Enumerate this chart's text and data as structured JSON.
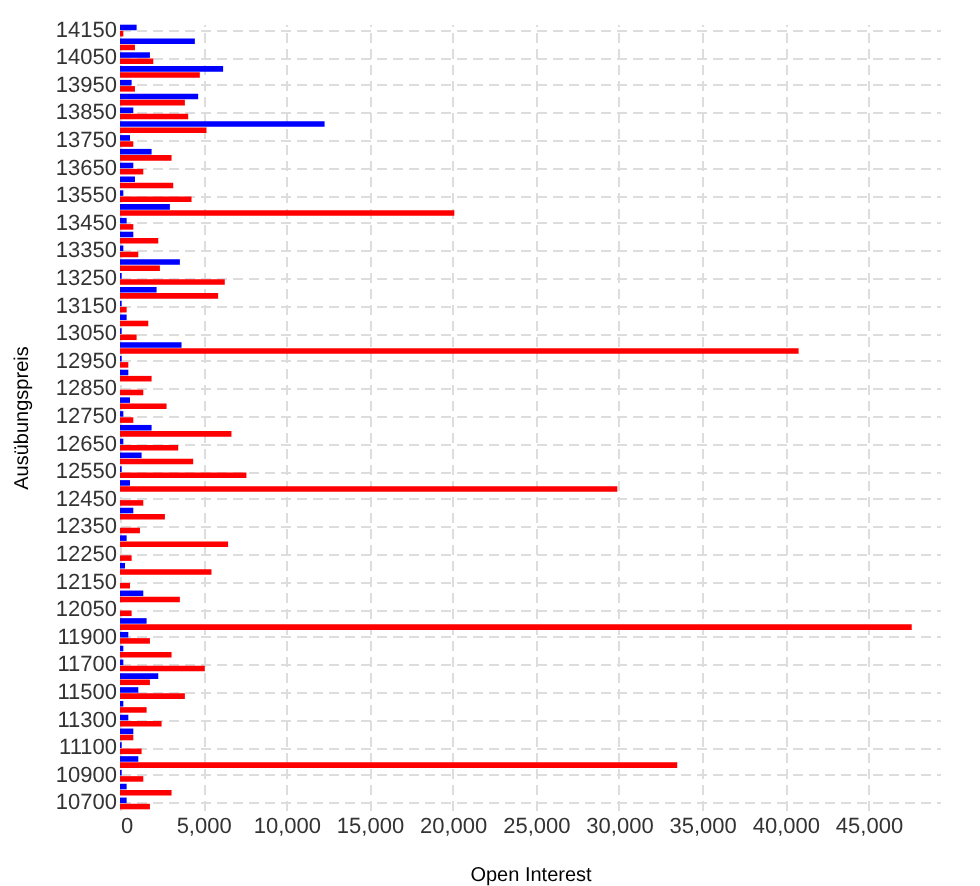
{
  "chart_data": {
    "type": "bar",
    "orientation": "horizontal",
    "xlabel": "Open Interest",
    "ylabel": "Ausübungspreis",
    "categories": [
      "14150",
      null,
      "14050",
      null,
      "13950",
      null,
      "13850",
      null,
      "13750",
      null,
      "13650",
      null,
      "13550",
      null,
      "13450",
      null,
      "13350",
      null,
      "13250",
      null,
      "13150",
      null,
      "13050",
      null,
      "12950",
      null,
      "12850",
      null,
      "12750",
      null,
      "12650",
      null,
      "12550",
      null,
      "12450",
      null,
      "12350",
      null,
      "12250",
      null,
      "12150",
      null,
      "12050",
      null,
      "11900",
      null,
      "11700",
      null,
      "11500",
      null,
      "11300",
      null,
      "11100",
      null,
      "10900",
      null,
      "10700"
    ],
    "series": [
      {
        "color": "#0000ff",
        "values": [
          1000,
          4500,
          1800,
          6200,
          700,
          4700,
          800,
          12300,
          600,
          1900,
          800,
          900,
          200,
          3000,
          400,
          800,
          200,
          3600,
          100,
          2200,
          100,
          400,
          100,
          3700,
          100,
          500,
          0,
          600,
          200,
          1900,
          200,
          1300,
          100,
          600,
          0,
          800,
          0,
          400,
          0,
          300,
          0,
          1400,
          0,
          1600,
          500,
          200,
          200,
          2300,
          1100,
          200,
          500,
          800,
          100,
          1100,
          100,
          400,
          400
        ]
      },
      {
        "color": "#ff0000",
        "values": [
          200,
          900,
          2000,
          4800,
          900,
          3900,
          4100,
          5200,
          800,
          3100,
          1400,
          3200,
          4300,
          20100,
          800,
          2300,
          1100,
          2400,
          6300,
          5900,
          400,
          1700,
          1000,
          40800,
          500,
          1900,
          1400,
          2800,
          800,
          6700,
          3500,
          4400,
          7600,
          29900,
          1400,
          2700,
          1200,
          6500,
          700,
          5500,
          600,
          3600,
          700,
          47600,
          1800,
          3100,
          5100,
          1800,
          3900,
          1600,
          2500,
          800,
          1300,
          33500,
          1400,
          3100,
          1800
        ]
      }
    ],
    "xlim": [
      0,
      49300
    ],
    "xticks": [
      {
        "value": 0,
        "label": "0"
      },
      {
        "value": 5000,
        "label": "5,000"
      },
      {
        "value": 10000,
        "label": "10,000"
      },
      {
        "value": 15000,
        "label": "15,000"
      },
      {
        "value": 20000,
        "label": "20,000"
      },
      {
        "value": 25000,
        "label": "25,000"
      },
      {
        "value": 30000,
        "label": "30,000"
      },
      {
        "value": 35000,
        "label": "35,000"
      },
      {
        "value": 40000,
        "label": "40,000"
      },
      {
        "value": 45000,
        "label": "45,000"
      }
    ],
    "grid": true
  }
}
